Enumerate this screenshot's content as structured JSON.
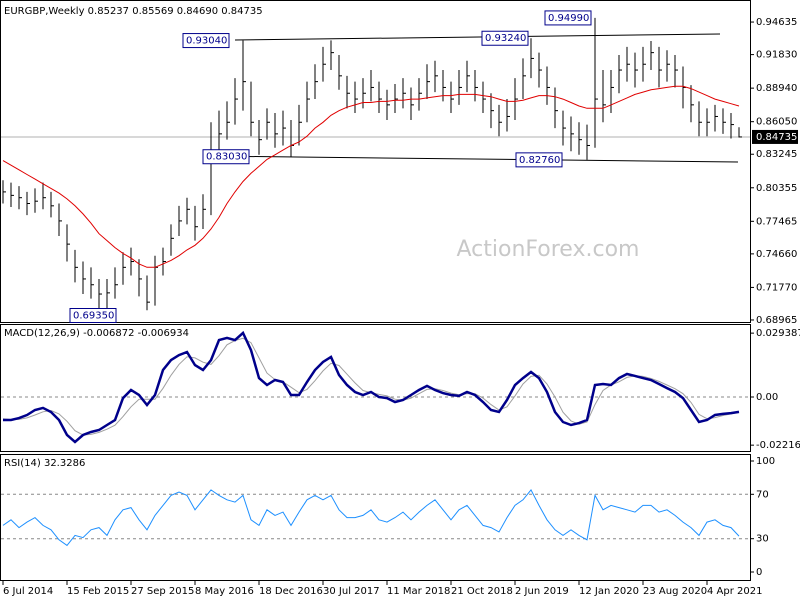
{
  "chart_data": [
    {
      "type": "ohlc",
      "title": "EURGBP,Weekly  0.85237 0.85569 0.84690 0.84735",
      "watermark": "ActionForex.com",
      "categories": [
        "6 Jul 2014",
        null,
        null,
        null,
        null,
        null,
        null,
        null,
        "15 Feb 2015",
        null,
        null,
        null,
        null,
        null,
        null,
        null,
        "27 Sep 2015",
        null,
        null,
        null,
        null,
        null,
        null,
        null,
        "8 May 2016",
        null,
        null,
        null,
        null,
        null,
        null,
        null,
        "18 Dec 2016",
        null,
        null,
        null,
        null,
        null,
        null,
        null,
        "30 Jul 2017",
        null,
        null,
        null,
        null,
        null,
        null,
        null,
        "11 Mar 2018",
        null,
        null,
        null,
        null,
        null,
        null,
        null,
        "21 Oct 2018",
        null,
        null,
        null,
        null,
        null,
        null,
        null,
        "2 Jun 2019",
        null,
        null,
        null,
        null,
        null,
        null,
        null,
        "12 Jan 2020",
        null,
        null,
        null,
        null,
        null,
        null,
        null,
        "23 Aug 2020",
        null,
        null,
        null,
        null,
        null,
        null,
        null,
        "4 Apr 2021",
        null,
        null,
        null,
        null
      ],
      "high": [
        0.81,
        0.808,
        0.805,
        0.8,
        0.803,
        0.808,
        0.8,
        0.79,
        0.772,
        0.75,
        0.74,
        0.735,
        0.725,
        0.725,
        0.735,
        0.748,
        0.752,
        0.742,
        0.728,
        0.745,
        0.752,
        0.772,
        0.788,
        0.795,
        0.788,
        0.798,
        0.86,
        0.87,
        0.878,
        0.898,
        0.9304,
        0.895,
        0.862,
        0.872,
        0.868,
        0.87,
        0.862,
        0.875,
        0.895,
        0.91,
        0.925,
        0.9306,
        0.918,
        0.9,
        0.895,
        0.898,
        0.905,
        0.895,
        0.888,
        0.893,
        0.898,
        0.89,
        0.898,
        0.91,
        0.913,
        0.905,
        0.895,
        0.905,
        0.913,
        0.905,
        0.895,
        0.885,
        0.875,
        0.88,
        0.898,
        0.915,
        0.9324,
        0.92,
        0.908,
        0.89,
        0.87,
        0.865,
        0.86,
        0.858,
        0.9499,
        0.905,
        0.905,
        0.918,
        0.925,
        0.92,
        0.925,
        0.93,
        0.925,
        0.922,
        0.918,
        0.908,
        0.892,
        0.878,
        0.872,
        0.875,
        0.872,
        0.868,
        0.85569
      ],
      "low": [
        0.79,
        0.787,
        0.785,
        0.78,
        0.782,
        0.785,
        0.778,
        0.762,
        0.74,
        0.722,
        0.712,
        0.708,
        0.7,
        0.6935,
        0.708,
        0.72,
        0.728,
        0.71,
        0.698,
        0.702,
        0.728,
        0.745,
        0.762,
        0.772,
        0.758,
        0.768,
        0.78,
        0.835,
        0.845,
        0.858,
        0.87,
        0.848,
        0.832,
        0.845,
        0.838,
        0.84,
        0.8303,
        0.84,
        0.86,
        0.88,
        0.895,
        0.905,
        0.888,
        0.872,
        0.868,
        0.872,
        0.878,
        0.868,
        0.862,
        0.868,
        0.872,
        0.862,
        0.87,
        0.88,
        0.886,
        0.878,
        0.868,
        0.875,
        0.886,
        0.878,
        0.868,
        0.855,
        0.848,
        0.852,
        0.862,
        0.88,
        0.898,
        0.89,
        0.875,
        0.855,
        0.84,
        0.835,
        0.832,
        0.8276,
        0.838,
        0.86,
        0.868,
        0.885,
        0.895,
        0.89,
        0.895,
        0.905,
        0.89,
        0.895,
        0.89,
        0.872,
        0.86,
        0.848,
        0.848,
        0.852,
        0.85,
        0.846,
        0.8469
      ],
      "close": [
        0.8,
        0.797,
        0.795,
        0.79,
        0.792,
        0.795,
        0.788,
        0.775,
        0.755,
        0.735,
        0.725,
        0.72,
        0.712,
        0.713,
        0.72,
        0.735,
        0.74,
        0.725,
        0.705,
        0.735,
        0.74,
        0.76,
        0.775,
        0.785,
        0.77,
        0.785,
        0.835,
        0.85,
        0.86,
        0.88,
        0.895,
        0.86,
        0.845,
        0.86,
        0.85,
        0.855,
        0.84,
        0.86,
        0.88,
        0.895,
        0.91,
        0.92,
        0.9,
        0.885,
        0.88,
        0.885,
        0.89,
        0.88,
        0.875,
        0.88,
        0.885,
        0.875,
        0.885,
        0.895,
        0.9,
        0.89,
        0.88,
        0.89,
        0.9,
        0.89,
        0.88,
        0.87,
        0.86,
        0.865,
        0.88,
        0.9,
        0.915,
        0.905,
        0.89,
        0.87,
        0.855,
        0.85,
        0.845,
        0.84,
        0.88,
        0.875,
        0.89,
        0.905,
        0.91,
        0.905,
        0.91,
        0.92,
        0.905,
        0.91,
        0.905,
        0.89,
        0.875,
        0.86,
        0.86,
        0.865,
        0.86,
        0.858,
        0.84735
      ],
      "color": "#000000",
      "ma": {
        "color": "#e00000",
        "values": [
          0.827,
          0.823,
          0.819,
          0.815,
          0.811,
          0.807,
          0.803,
          0.799,
          0.794,
          0.788,
          0.781,
          0.773,
          0.764,
          0.758,
          0.752,
          0.747,
          0.743,
          0.738,
          0.735,
          0.735,
          0.738,
          0.741,
          0.745,
          0.75,
          0.754,
          0.76,
          0.768,
          0.778,
          0.79,
          0.8,
          0.809,
          0.816,
          0.822,
          0.828,
          0.832,
          0.836,
          0.84,
          0.843,
          0.848,
          0.855,
          0.86,
          0.866,
          0.87,
          0.873,
          0.875,
          0.877,
          0.877,
          0.878,
          0.878,
          0.879,
          0.879,
          0.88,
          0.88,
          0.881,
          0.882,
          0.883,
          0.883,
          0.884,
          0.884,
          0.884,
          0.883,
          0.882,
          0.88,
          0.878,
          0.878,
          0.879,
          0.881,
          0.883,
          0.883,
          0.882,
          0.88,
          0.877,
          0.874,
          0.872,
          0.872,
          0.872,
          0.875,
          0.878,
          0.881,
          0.884,
          0.886,
          0.888,
          0.889,
          0.89,
          0.891,
          0.891,
          0.889,
          0.886,
          0.883,
          0.88,
          0.878,
          0.876,
          0.874
        ]
      },
      "last_price": 0.84735,
      "annotations": [
        {
          "value": 0.9304,
          "label": "0.93040"
        },
        {
          "value": 0.9324,
          "label": "0.93240"
        },
        {
          "value": 0.9499,
          "label": "0.94990"
        },
        {
          "value": 0.8303,
          "label": "0.83030"
        },
        {
          "value": 0.8276,
          "label": "0.82760"
        },
        {
          "value": 0.6935,
          "label": "0.69350"
        }
      ],
      "ylim": [
        0.6879,
        0.9619
      ],
      "yticks": [
        0.94635,
        {
          "value": 0.9183,
          "label": "0.91830"
        },
        {
          "value": 0.8894,
          "label": "0.88940"
        },
        {
          "value": 0.8605,
          "label": "0.86050"
        },
        0.83245,
        0.80355,
        0.77465,
        {
          "value": 0.7466,
          "label": "0.74660"
        },
        {
          "value": 0.7177,
          "label": "0.71770"
        },
        0.68965
      ]
    },
    {
      "type": "macd",
      "title": "MACD(12,26,9) -0.006872 -0.006934",
      "main": {
        "color": "#00008b",
        "values": [
          -0.0106,
          -0.0106,
          -0.0097,
          -0.0083,
          -0.006,
          -0.005,
          -0.0069,
          -0.0106,
          -0.0175,
          -0.0207,
          -0.0175,
          -0.0161,
          -0.0152,
          -0.0129,
          -0.0106,
          -0.0005,
          0.0032,
          0.0009,
          -0.0037,
          0.0009,
          0.0124,
          0.017,
          0.0193,
          0.0207,
          0.0147,
          0.0124,
          0.017,
          0.0262,
          0.0272,
          0.0262,
          0.0295,
          0.0216,
          0.0087,
          0.0055,
          0.0078,
          0.0069,
          0.0009,
          0.0009,
          0.0069,
          0.0124,
          0.0161,
          0.0184,
          0.0101,
          0.0055,
          0.0023,
          0.0009,
          0.0023,
          0,
          -0.0005,
          -0.0023,
          -0.0014,
          0.0009,
          0.0032,
          0.0051,
          0.0032,
          0.0018,
          0.0009,
          0.0005,
          0.0023,
          0.0009,
          -0.0023,
          -0.006,
          -0.0069,
          -0.0014,
          0.0055,
          0.0087,
          0.0115,
          0.0087,
          0.0023,
          -0.0069,
          -0.0115,
          -0.0129,
          -0.012,
          -0.0106,
          0.0055,
          0.006,
          0.0055,
          0.0087,
          0.0106,
          0.0097,
          0.0087,
          0.0078,
          0.006,
          0.0041,
          0.0023,
          -0.0005,
          -0.006,
          -0.0115,
          -0.0106,
          -0.0083,
          -0.0078,
          -0.0074,
          -0.006872
        ]
      },
      "signal": {
        "color": "#a0a0a0",
        "values": [
          -0.01,
          -0.0104,
          -0.0103,
          -0.0096,
          -0.0083,
          -0.0068,
          -0.0062,
          -0.0078,
          -0.0112,
          -0.0155,
          -0.0175,
          -0.0172,
          -0.0163,
          -0.0148,
          -0.013,
          -0.009,
          -0.0045,
          -0.001,
          -0.001,
          -0.001,
          0.004,
          0.01,
          0.015,
          0.0185,
          0.018,
          0.016,
          0.015,
          0.019,
          0.024,
          0.026,
          0.027,
          0.025,
          0.018,
          0.011,
          0.008,
          0.007,
          0.0045,
          0.002,
          0.0035,
          0.0075,
          0.012,
          0.0155,
          0.0145,
          0.0105,
          0.0065,
          0.003,
          0.002,
          0.0012,
          0.0005,
          -0.001,
          -0.0015,
          -0.0005,
          0.0015,
          0.0035,
          0.0038,
          0.003,
          0.0018,
          0.001,
          0.0015,
          0.0015,
          -0.0005,
          -0.0035,
          -0.006,
          -0.0045,
          0.0005,
          0.006,
          0.0095,
          0.01,
          0.006,
          0.0,
          -0.007,
          -0.011,
          -0.0125,
          -0.0115,
          -0.0035,
          0.003,
          0.0055,
          0.007,
          0.009,
          0.0098,
          0.0095,
          0.0085,
          0.0072,
          0.0055,
          0.0038,
          0.0015,
          -0.0025,
          -0.008,
          -0.01,
          -0.0095,
          -0.0085,
          -0.0078,
          -0.006934
        ]
      },
      "levels": [
        0
      ],
      "ylim": [
        -0.02485,
        0.03267
      ],
      "yticks": [
        0.029387,
        {
          "value": 0,
          "label": "0.00"
        },
        -0.022161
      ]
    },
    {
      "type": "rsi",
      "title": "RSI(14) 32.3286",
      "color": "#1e90ff",
      "values": [
        42,
        47,
        40,
        45,
        49,
        42,
        38,
        29,
        24,
        33,
        31,
        38,
        40,
        33,
        47,
        56,
        58,
        47,
        38,
        51,
        60,
        69,
        72,
        69,
        56,
        65,
        74,
        69,
        65,
        63,
        69,
        47,
        42,
        56,
        51,
        54,
        42,
        54,
        65,
        69,
        65,
        69,
        56,
        49,
        49,
        51,
        56,
        47,
        45,
        49,
        54,
        47,
        54,
        60,
        65,
        56,
        47,
        56,
        60,
        51,
        42,
        40,
        36,
        49,
        60,
        65,
        74,
        60,
        47,
        38,
        33,
        38,
        33,
        29,
        69,
        56,
        60,
        58,
        56,
        54,
        60,
        60,
        54,
        56,
        51,
        45,
        40,
        33,
        45,
        47,
        42,
        40,
        32.3286
      ],
      "levels": [
        70,
        30
      ],
      "ylim": [
        -7.2,
        104.5
      ],
      "yticks": [
        100,
        70,
        30,
        0
      ]
    }
  ]
}
